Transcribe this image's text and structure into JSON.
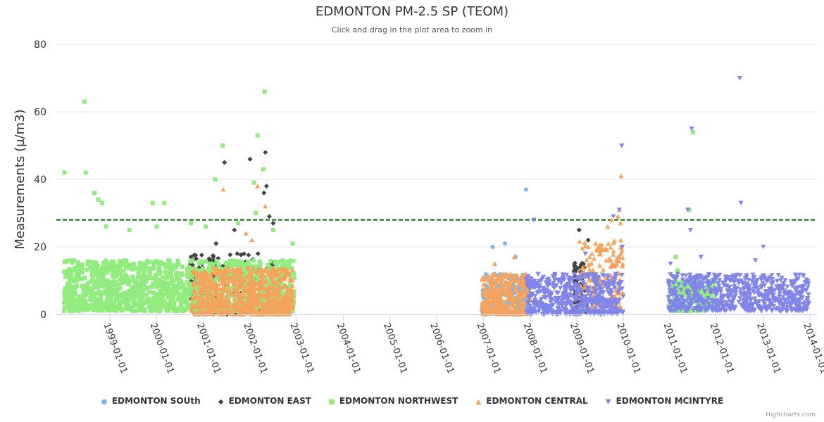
{
  "chart_data": {
    "type": "scatter",
    "title": "EDMONTON PM-2.5 SP (TEOM)",
    "subtitle": "Click and drag in the plot area to zoom in",
    "ylabel": "Measurements (µ/m3)",
    "xlabel": "",
    "ylim": [
      0,
      80
    ],
    "yticks": [
      0,
      20,
      40,
      60,
      80
    ],
    "xlim": [
      "1998-01-01",
      "2014-01-01"
    ],
    "xticks": [
      "1999-01-01",
      "2000-01-01",
      "2001-01-01",
      "2002-01-01",
      "2003-01-01",
      "2004-01-01",
      "2005-01-01",
      "2006-01-01",
      "2007-01-01",
      "2008-01-01",
      "2009-01-01",
      "2010-01-01",
      "2011-01-01",
      "2012-01-01",
      "2013-01-01",
      "2014-01-01"
    ],
    "threshold": {
      "value": 28,
      "color": "#006400",
      "style": "dashed"
    },
    "legend_position": "bottom-center",
    "series": [
      {
        "name": "EDMONTON SOUth",
        "color": "#7cb5ec",
        "marker": "circle",
        "ranges": [
          {
            "from": "2006-12-20",
            "to": "2007-12-15",
            "count": 220,
            "typical": [
              0,
              12
            ],
            "seed": 11
          }
        ],
        "points": [
          [
            "2007-12-01",
            37
          ],
          [
            "2007-03-15",
            20
          ],
          [
            "2007-06-20",
            21
          ],
          [
            "2007-09-10",
            17
          ]
        ]
      },
      {
        "name": "EDMONTON EAST",
        "color": "#434348",
        "marker": "diamond",
        "ranges": [
          {
            "from": "2000-09-20",
            "to": "2002-07-20",
            "count": 190,
            "typical": [
              0,
              18
            ],
            "seed": 22
          },
          {
            "from": "2008-12-10",
            "to": "2009-03-20",
            "count": 70,
            "typical": [
              0,
              16
            ],
            "seed": 23
          }
        ],
        "points": [
          [
            "2002-05-01",
            48
          ],
          [
            "2002-01-01",
            46
          ],
          [
            "2001-06-15",
            45
          ],
          [
            "2002-05-10",
            38
          ],
          [
            "2002-04-20",
            36
          ],
          [
            "2002-06-01",
            29
          ],
          [
            "2002-07-01",
            27
          ],
          [
            "2001-09-01",
            25
          ],
          [
            "2001-04-10",
            21
          ],
          [
            "2009-01-20",
            25
          ],
          [
            "2009-04-01",
            22
          ],
          [
            "2000-09-25",
            17
          ]
        ]
      },
      {
        "name": "EDMONTON NORTHWEST",
        "color": "#90ed7d",
        "marker": "square",
        "ranges": [
          {
            "from": "1998-01-05",
            "to": "2002-12-15",
            "count": 1450,
            "typical": [
              1,
              16
            ],
            "seed": 33
          },
          {
            "from": "2010-12-25",
            "to": "2011-12-20",
            "count": 180,
            "typical": [
              1,
              10
            ],
            "seed": 34
          }
        ],
        "points": [
          [
            "1998-06-15",
            63
          ],
          [
            "2002-04-25",
            66
          ],
          [
            "2001-06-01",
            50
          ],
          [
            "2002-03-01",
            53
          ],
          [
            "2002-04-15",
            43
          ],
          [
            "1998-01-10",
            42
          ],
          [
            "1998-06-25",
            42
          ],
          [
            "2001-04-01",
            40
          ],
          [
            "2002-02-01",
            39
          ],
          [
            "1998-09-01",
            36
          ],
          [
            "1998-10-01",
            34
          ],
          [
            "1998-11-01",
            33
          ],
          [
            "1999-12-01",
            33
          ],
          [
            "2000-03-01",
            33
          ],
          [
            "2000-09-25",
            27
          ],
          [
            "2001-10-01",
            27
          ],
          [
            "2002-02-15",
            30
          ],
          [
            "1998-12-01",
            26
          ],
          [
            "1999-06-01",
            25
          ],
          [
            "2000-01-01",
            26
          ],
          [
            "2002-07-01",
            25
          ],
          [
            "2002-12-01",
            21
          ],
          [
            "2001-01-20",
            26
          ],
          [
            "2011-07-01",
            54
          ],
          [
            "2011-06-01",
            31
          ],
          [
            "2011-02-15",
            17
          ],
          [
            "2011-03-01",
            13
          ]
        ]
      },
      {
        "name": "EDMONTON CENTRAL",
        "color": "#f7a35c",
        "marker": "triangle",
        "ranges": [
          {
            "from": "2000-10-01",
            "to": "2002-12-05",
            "count": 760,
            "typical": [
              0,
              14
            ],
            "seed": 44
          },
          {
            "from": "2006-12-20",
            "to": "2008-01-01",
            "count": 360,
            "typical": [
              0,
              12
            ],
            "seed": 45
          },
          {
            "from": "2009-01-20",
            "to": "2009-12-30",
            "count": 170,
            "typical": [
              1,
              22
            ],
            "seed": 46
          }
        ],
        "points": [
          [
            "2001-06-05",
            37
          ],
          [
            "2002-05-01",
            32
          ],
          [
            "2002-03-01",
            38
          ],
          [
            "2001-12-01",
            24
          ],
          [
            "2002-01-15",
            22
          ],
          [
            "2009-12-15",
            41
          ],
          [
            "2009-12-01",
            31
          ],
          [
            "2009-11-20",
            29
          ],
          [
            "2009-10-01",
            28
          ],
          [
            "2009-09-01",
            26
          ],
          [
            "2009-12-10",
            27
          ],
          [
            "2009-06-01",
            21
          ],
          [
            "2009-04-01",
            20
          ],
          [
            "2007-04-01",
            15
          ],
          [
            "2007-09-01",
            17
          ],
          [
            "2009-05-01",
            18
          ],
          [
            "2009-07-01",
            19
          ]
        ]
      },
      {
        "name": "EDMONTON MCINTYRE",
        "color": "#8085e9",
        "marker": "triangle-down",
        "ranges": [
          {
            "from": "2007-12-01",
            "to": "2009-12-31",
            "count": 520,
            "typical": [
              0,
              12
            ],
            "seed": 55
          },
          {
            "from": "2010-12-20",
            "to": "2013-12-25",
            "count": 700,
            "typical": [
              1,
              12
            ],
            "seed": 56
          }
        ],
        "points": [
          [
            "2012-07-01",
            70
          ],
          [
            "2009-12-20",
            50
          ],
          [
            "2011-06-20",
            55
          ],
          [
            "2012-07-10",
            33
          ],
          [
            "2011-05-20",
            31
          ],
          [
            "2009-12-01",
            31
          ],
          [
            "2008-02-01",
            28
          ],
          [
            "2009-10-15",
            29
          ],
          [
            "2011-06-10",
            25
          ],
          [
            "2009-03-10",
            18
          ],
          [
            "2011-01-05",
            15
          ],
          [
            "2011-09-01",
            17
          ],
          [
            "2013-01-01",
            20
          ],
          [
            "2009-12-25",
            20
          ],
          [
            "2012-11-01",
            16
          ]
        ]
      }
    ]
  },
  "credits": "Highcharts.com"
}
